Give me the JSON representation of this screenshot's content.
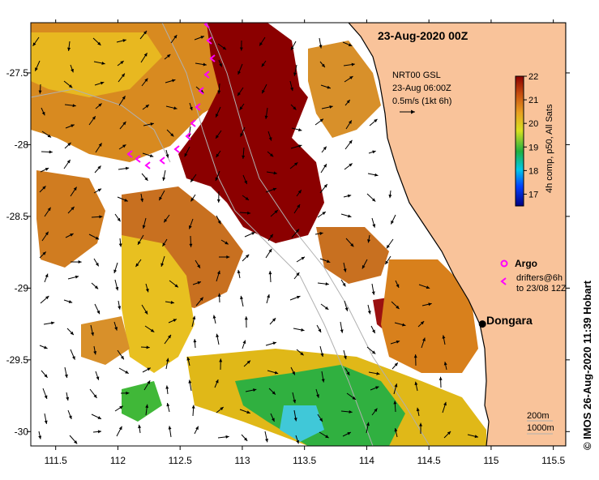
{
  "title": "23-Aug-2020 00Z",
  "current_vector": {
    "line1": "NRT00 GSL",
    "line2": "23-Aug 06:00Z",
    "line3": "0.5m/s (1kt 6h)"
  },
  "colorbar": {
    "ticks": [
      "22",
      "21",
      "20",
      "19",
      "18",
      "17"
    ],
    "min": 16.5,
    "max": 22,
    "label": "4h comp, p50, All Sats"
  },
  "legend": {
    "argo": "Argo",
    "drifters1": "drifters@6h",
    "drifters2": "to 23/08 12Z"
  },
  "place": {
    "name": "Dongara",
    "lon": 114.93,
    "lat": -29.25
  },
  "isobaths": {
    "line1": "200m",
    "line2": "1000m"
  },
  "credit": "© IMOS 26-Aug-2020 11:39 Hobart",
  "axes": {
    "x_ticks": [
      "111.5",
      "112",
      "112.5",
      "113",
      "113.5",
      "114",
      "114.5",
      "115",
      "115.5"
    ],
    "y_ticks": [
      "-27.5",
      "-28",
      "-28.5",
      "-29",
      "-29.5",
      "-30"
    ],
    "x_range": [
      111.3,
      115.6
    ],
    "y_range": [
      -30.1,
      -27.15
    ]
  },
  "colors": {
    "land": "#f9c39a",
    "sst_high": "#8b0000",
    "sst_mid": "#d87820",
    "sst_yellow": "#e8c010",
    "sst_green": "#30b040",
    "sst_cyan": "#40c8d8",
    "drifter": "#ff00ff"
  }
}
